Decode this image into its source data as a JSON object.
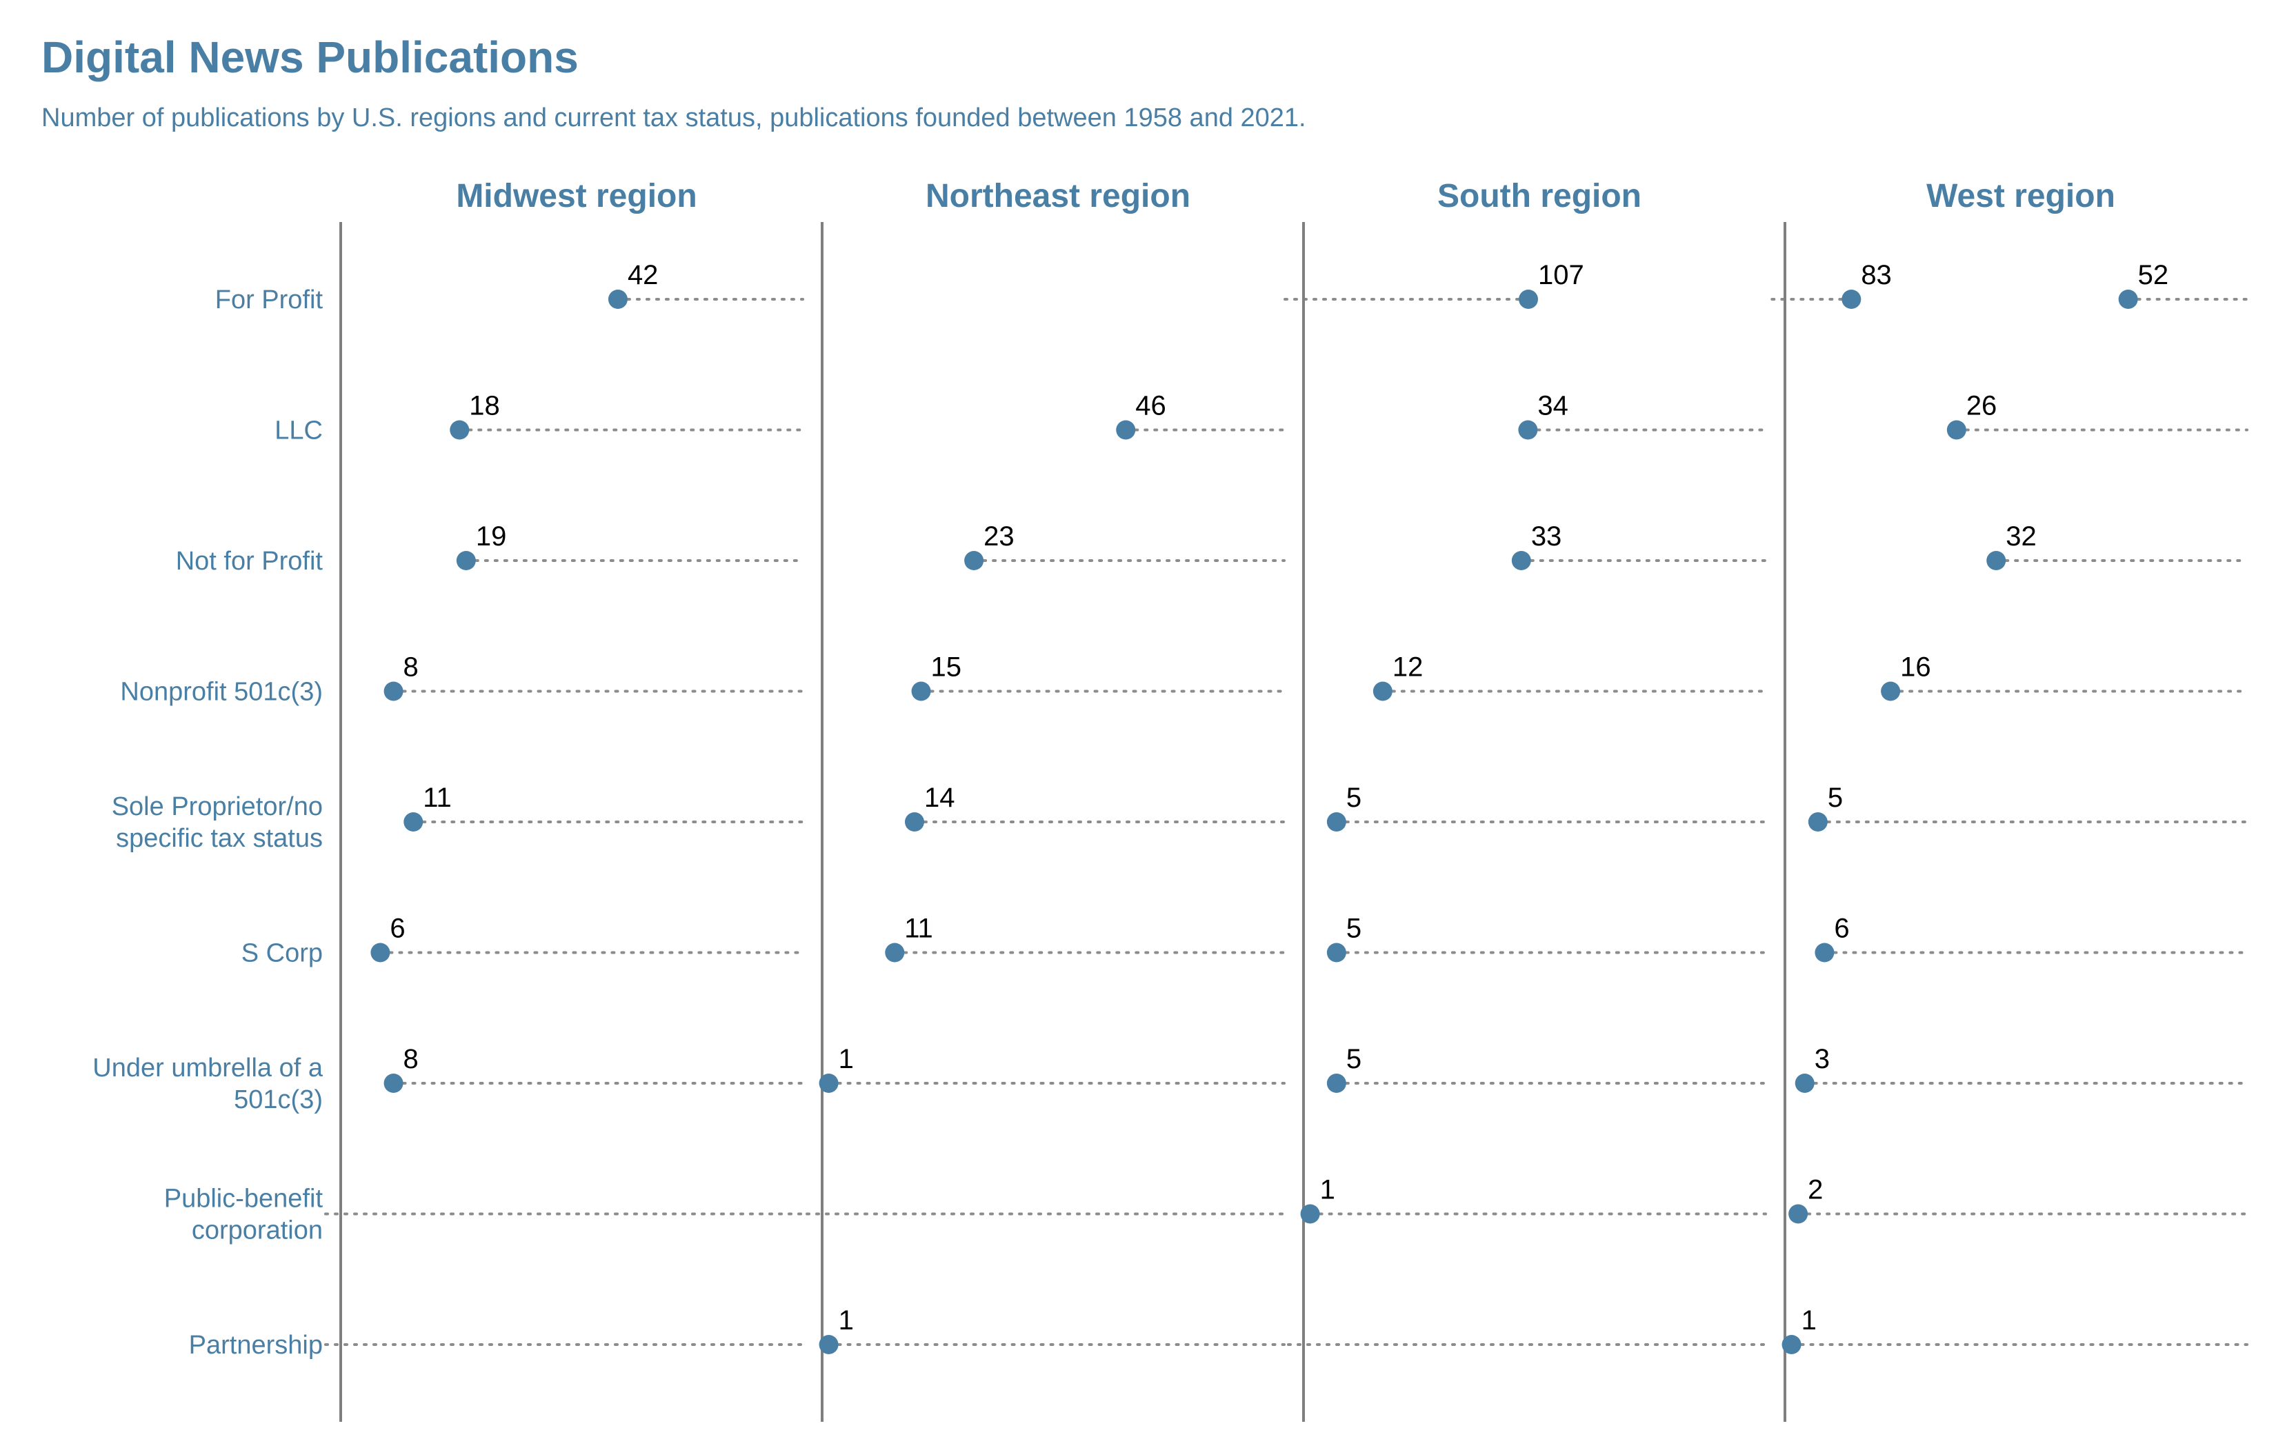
{
  "title": "Digital News Publications",
  "subtitle": "Number of publications by U.S. regions and current tax status, publications founded between 1958 and 2021.",
  "colors": {
    "title": "#4a7fa5",
    "dot": "#4a7fa5",
    "axis_line": "#7f7f7f",
    "dotted_line": "#8c8c8c",
    "value_text": "#000000"
  },
  "chart_data": {
    "type": "dot",
    "title": "Digital News Publications",
    "subtitle": "Number of publications by U.S. regions and current tax status, publications founded between 1958 and 2021.",
    "categories": [
      "For Profit",
      "LLC",
      "Not for Profit",
      "Nonprofit 501c(3)",
      "Sole Proprietor/no specific tax status",
      "S Corp",
      "Under umbrella of a 501c(3)",
      "Public-benefit corporation",
      "Partnership"
    ],
    "category_lines": [
      [
        "For Profit"
      ],
      [
        "LLC"
      ],
      [
        "Not for Profit"
      ],
      [
        "Nonprofit 501c(3)"
      ],
      [
        "Sole Proprietor/no",
        "specific tax status"
      ],
      [
        "S Corp"
      ],
      [
        "Under umbrella of a",
        "501c(3)"
      ],
      [
        "Public-benefit",
        "corporation"
      ],
      [
        "Partnership"
      ]
    ],
    "xlim": [
      0,
      110
    ],
    "grid": false,
    "panels": [
      {
        "name": "Midwest region",
        "values": [
          42,
          18,
          19,
          8,
          11,
          6,
          8,
          null,
          null
        ]
      },
      {
        "name": "Northeast region",
        "values": [
          107,
          46,
          23,
          15,
          14,
          11,
          1,
          null,
          1
        ]
      },
      {
        "name": "South region",
        "values": [
          83,
          34,
          33,
          12,
          5,
          5,
          5,
          1,
          null
        ]
      },
      {
        "name": "West region",
        "values": [
          52,
          26,
          32,
          16,
          5,
          6,
          3,
          2,
          1
        ]
      }
    ]
  }
}
